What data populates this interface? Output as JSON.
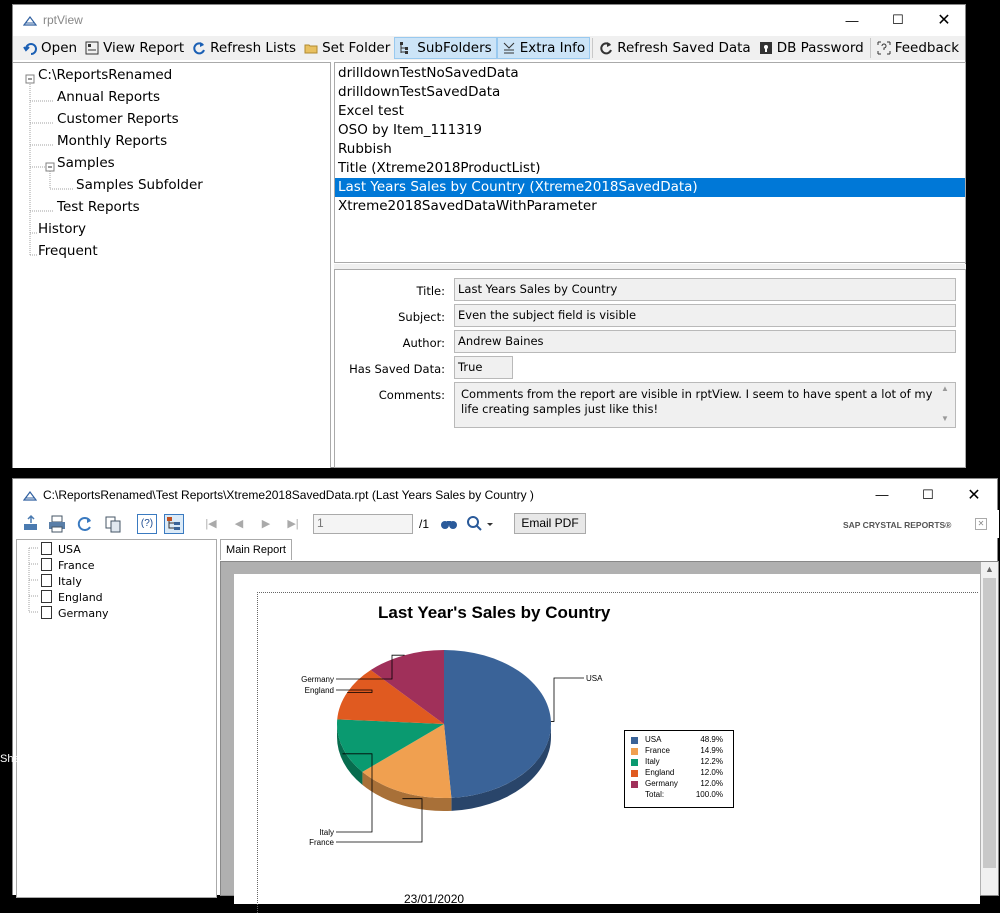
{
  "rptview": {
    "title": "rptView",
    "toolbar": [
      {
        "id": "open",
        "label": "Open",
        "icon": "open-icon"
      },
      {
        "id": "view-report",
        "label": "View Report",
        "icon": "view-report-icon"
      },
      {
        "id": "refresh-lists",
        "label": "Refresh Lists",
        "icon": "refresh-icon"
      },
      {
        "id": "set-folder",
        "label": "Set Folder",
        "icon": "folder-icon"
      },
      {
        "id": "subfolders",
        "label": "SubFolders",
        "icon": "subfolders-icon",
        "active": true
      },
      {
        "id": "extra-info",
        "label": "Extra Info",
        "icon": "extra-info-icon",
        "active": true
      },
      {
        "id": "refresh-saved-data",
        "label": "Refresh Saved Data",
        "icon": "refresh-icon"
      },
      {
        "id": "db-password",
        "label": "DB Password",
        "icon": "db-password-icon"
      },
      {
        "id": "feedback",
        "label": "Feedback",
        "icon": "feedback-icon"
      }
    ],
    "tree": {
      "root": "C:\\ReportsRenamed",
      "children": [
        "Annual Reports",
        "Customer Reports",
        "Monthly Reports",
        "Samples",
        "Test Reports"
      ],
      "samples_child": "Samples Subfolder",
      "extra": [
        "History",
        "Frequent"
      ]
    },
    "reports": [
      "drilldownTestNoSavedData",
      "drilldownTestSavedData",
      "Excel test",
      "OSO by Item_111319",
      "Rubbish",
      "Title (Xtreme2018ProductList)",
      "Last Years Sales by Country (Xtreme2018SavedData)",
      "Xtreme2018SavedDataWithParameter"
    ],
    "selected_report_index": 6,
    "details": {
      "title_label": "Title:",
      "title_value": "Last Years Sales by Country",
      "subject_label": "Subject:",
      "subject_value": "Even the subject field is visible",
      "author_label": "Author:",
      "author_value": "Andrew Baines",
      "saved_label": "Has Saved Data:",
      "saved_value": "True",
      "comments_label": "Comments:",
      "comments_value": "Comments from the report are visible in rptView. I seem to have spent a lot of my life creating samples just like this!"
    }
  },
  "viewer": {
    "title": "C:\\ReportsRenamed\\Test Reports\\Xtreme2018SavedData.rpt (Last Years Sales by Country )",
    "page_input": "1",
    "page_total": "/1",
    "email_pdf": "Email PDF",
    "brand": "SAP CRYSTAL REPORTS®",
    "group_tree": [
      "USA",
      "France",
      "Italy",
      "England",
      "Germany"
    ],
    "tab_label": "Main Report",
    "report_title": "Last Year's Sales by Country",
    "footer_date": "23/01/2020",
    "side_text": "She"
  },
  "chart_data": {
    "type": "pie",
    "title": "Last Year's Sales by Country",
    "categories": [
      "USA",
      "France",
      "Italy",
      "England",
      "Germany"
    ],
    "values": [
      48.9,
      14.9,
      12.2,
      12.0,
      12.0
    ],
    "value_labels": [
      "48.9%",
      "14.9%",
      "12.2%",
      "12.0%",
      "12.0%"
    ],
    "colors": [
      "#3a6398",
      "#f0a050",
      "#0a9a70",
      "#e05a20",
      "#a0305a"
    ],
    "total_label": "Total:",
    "total_value": "100.0%",
    "legend_position": "right"
  }
}
